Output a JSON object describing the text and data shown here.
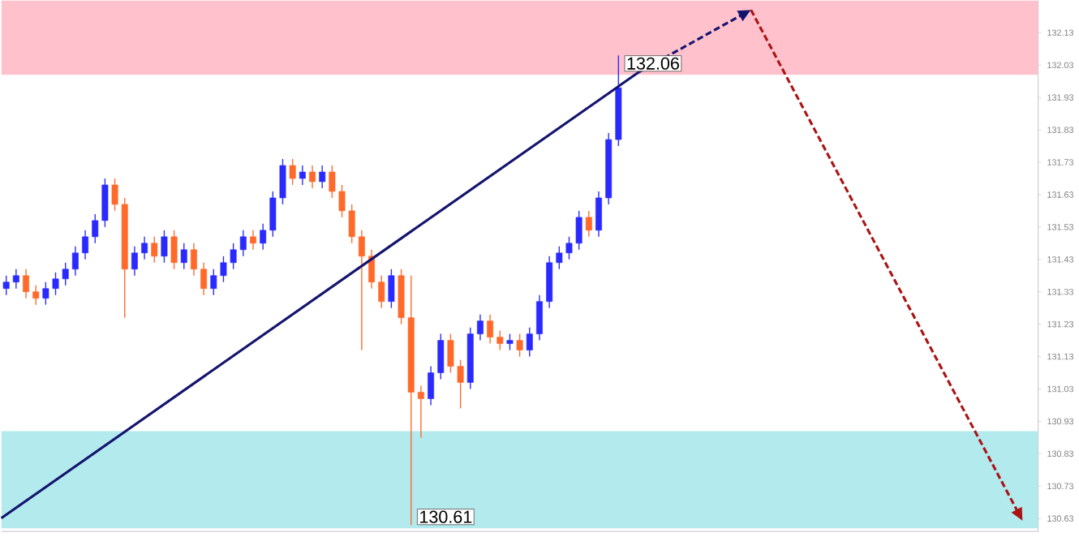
{
  "chart_data": {
    "type": "candlestick",
    "tick_labels": "y",
    "ylim": [
      130.59,
      132.23
    ],
    "yticks": [
      130.63,
      130.73,
      130.83,
      130.93,
      131.03,
      131.13,
      131.23,
      131.33,
      131.43,
      131.53,
      131.63,
      131.73,
      131.83,
      131.93,
      132.03,
      132.13
    ],
    "categories": [
      null,
      null,
      null,
      null,
      null,
      null,
      null,
      null,
      null,
      null,
      null,
      null,
      null,
      null,
      null,
      null,
      null,
      null,
      null,
      null,
      null,
      null,
      null,
      null,
      null,
      null,
      null,
      null,
      null,
      null,
      null,
      null,
      null,
      null,
      null,
      null,
      null,
      null,
      null,
      null,
      null,
      null,
      null,
      null,
      null,
      null,
      null,
      null,
      null,
      null,
      null,
      null,
      null,
      null,
      null,
      null,
      null,
      null,
      null,
      null,
      null,
      null,
      null,
      null,
      null,
      null,
      null,
      null,
      null,
      null,
      null,
      null,
      null,
      null,
      null,
      null,
      null,
      null,
      null,
      null,
      null,
      null,
      null,
      null,
      null,
      null,
      null,
      null,
      null,
      null,
      null,
      null,
      null,
      null,
      null,
      null,
      null,
      null,
      null,
      null,
      null,
      null,
      null,
      null,
      null
    ],
    "ohlc": [
      [
        131.34,
        131.38,
        131.32,
        131.36
      ],
      [
        131.36,
        131.4,
        131.34,
        131.38
      ],
      [
        131.38,
        131.4,
        131.31,
        131.33
      ],
      [
        131.33,
        131.35,
        131.29,
        131.31
      ],
      [
        131.31,
        131.36,
        131.29,
        131.34
      ],
      [
        131.34,
        131.39,
        131.32,
        131.37
      ],
      [
        131.37,
        131.42,
        131.35,
        131.4
      ],
      [
        131.4,
        131.47,
        131.38,
        131.45
      ],
      [
        131.45,
        131.52,
        131.43,
        131.5
      ],
      [
        131.5,
        131.57,
        131.48,
        131.55
      ],
      [
        131.55,
        131.68,
        131.53,
        131.66
      ],
      [
        131.66,
        131.68,
        131.58,
        131.6
      ],
      [
        131.6,
        131.62,
        131.25,
        131.4
      ],
      [
        131.4,
        131.47,
        131.38,
        131.45
      ],
      [
        131.45,
        131.5,
        131.43,
        131.48
      ],
      [
        131.48,
        131.5,
        131.42,
        131.44
      ],
      [
        131.44,
        131.52,
        131.42,
        131.5
      ],
      [
        131.5,
        131.52,
        131.4,
        131.42
      ],
      [
        131.42,
        131.48,
        131.4,
        131.46
      ],
      [
        131.46,
        131.48,
        131.38,
        131.4
      ],
      [
        131.4,
        131.42,
        131.32,
        131.34
      ],
      [
        131.34,
        131.4,
        131.32,
        131.38
      ],
      [
        131.38,
        131.44,
        131.36,
        131.42
      ],
      [
        131.42,
        131.48,
        131.4,
        131.46
      ],
      [
        131.46,
        131.52,
        131.44,
        131.5
      ],
      [
        131.5,
        131.52,
        131.46,
        131.48
      ],
      [
        131.48,
        131.54,
        131.46,
        131.52
      ],
      [
        131.52,
        131.64,
        131.5,
        131.62
      ],
      [
        131.62,
        131.74,
        131.6,
        131.72
      ],
      [
        131.72,
        131.74,
        131.66,
        131.68
      ],
      [
        131.68,
        131.72,
        131.66,
        131.7
      ],
      [
        131.7,
        131.72,
        131.65,
        131.67
      ],
      [
        131.67,
        131.72,
        131.65,
        131.7
      ],
      [
        131.7,
        131.72,
        131.62,
        131.64
      ],
      [
        131.64,
        131.66,
        131.56,
        131.58
      ],
      [
        131.58,
        131.6,
        131.48,
        131.5
      ],
      [
        131.5,
        131.52,
        131.15,
        131.44
      ],
      [
        131.44,
        131.46,
        131.34,
        131.36
      ],
      [
        131.36,
        131.38,
        131.28,
        131.3
      ],
      [
        131.3,
        131.4,
        131.28,
        131.38
      ],
      [
        131.38,
        131.4,
        131.23,
        131.25
      ],
      [
        131.25,
        131.38,
        130.61,
        131.02
      ],
      [
        131.02,
        131.04,
        130.88,
        131.0
      ],
      [
        131.0,
        131.1,
        130.98,
        131.08
      ],
      [
        131.08,
        131.2,
        131.06,
        131.18
      ],
      [
        131.18,
        131.2,
        131.08,
        131.1
      ],
      [
        131.1,
        131.12,
        130.97,
        131.05
      ],
      [
        131.05,
        131.22,
        131.03,
        131.2
      ],
      [
        131.2,
        131.26,
        131.18,
        131.24
      ],
      [
        131.24,
        131.26,
        131.17,
        131.19
      ],
      [
        131.19,
        131.21,
        131.15,
        131.17
      ],
      [
        131.17,
        131.2,
        131.15,
        131.18
      ],
      [
        131.18,
        131.2,
        131.13,
        131.15
      ],
      [
        131.15,
        131.22,
        131.13,
        131.2
      ],
      [
        131.2,
        131.32,
        131.18,
        131.3
      ],
      [
        131.3,
        131.44,
        131.28,
        131.42
      ],
      [
        131.42,
        131.47,
        131.4,
        131.45
      ],
      [
        131.45,
        131.5,
        131.43,
        131.48
      ],
      [
        131.48,
        131.58,
        131.46,
        131.56
      ],
      [
        131.56,
        131.58,
        131.5,
        131.52
      ],
      [
        131.52,
        131.64,
        131.5,
        131.62
      ],
      [
        131.62,
        131.82,
        131.6,
        131.8
      ],
      [
        131.8,
        132.06,
        131.78,
        131.96
      ],
      null,
      null,
      null,
      null,
      null,
      null,
      null,
      null,
      null,
      null,
      null,
      null,
      null,
      null,
      null,
      null,
      null,
      null,
      null,
      null,
      null,
      null,
      null,
      null,
      null,
      null,
      null,
      null,
      null,
      null,
      null,
      null,
      null,
      null,
      null,
      null,
      null,
      null,
      null,
      null,
      null,
      null
    ],
    "colors": [
      "#2a2aff",
      "#2a2aff",
      "#ff6a2a",
      "#ff6a2a",
      "#2a2aff",
      "#2a2aff",
      "#2a2aff",
      "#2a2aff",
      "#2a2aff",
      "#2a2aff",
      "#2a2aff",
      "#ff6a2a",
      "#ff6a2a",
      "#2a2aff",
      "#2a2aff",
      "#ff6a2a",
      "#2a2aff",
      "#ff6a2a",
      "#2a2aff",
      "#ff6a2a",
      "#ff6a2a",
      "#2a2aff",
      "#2a2aff",
      "#2a2aff",
      "#2a2aff",
      "#ff6a2a",
      "#2a2aff",
      "#2a2aff",
      "#2a2aff",
      "#ff6a2a",
      "#2a2aff",
      "#ff6a2a",
      "#2a2aff",
      "#ff6a2a",
      "#ff6a2a",
      "#ff6a2a",
      "#ff6a2a",
      "#ff6a2a",
      "#ff6a2a",
      "#2a2aff",
      "#ff6a2a",
      "#ff6a2a",
      "#ff6a2a",
      "#2a2aff",
      "#2a2aff",
      "#ff6a2a",
      "#ff6a2a",
      "#2a2aff",
      "#2a2aff",
      "#ff6a2a",
      "#ff6a2a",
      "#2a2aff",
      "#ff6a2a",
      "#2a2aff",
      "#2a2aff",
      "#2a2aff",
      "#2a2aff",
      "#2a2aff",
      "#2a2aff",
      "#ff6a2a",
      "#2a2aff",
      "#2a2aff",
      "#2a2aff",
      null,
      null,
      null,
      null,
      null,
      null,
      null,
      null,
      null,
      null,
      null,
      null,
      null,
      null,
      null,
      null,
      null,
      null,
      null,
      null,
      null,
      null,
      null,
      null,
      null,
      null,
      null,
      null,
      null,
      null,
      null,
      null,
      null,
      null,
      null,
      null,
      null,
      null,
      null,
      null,
      null,
      null
    ],
    "bands": [
      {
        "axis": "y",
        "from": 132.0,
        "to": 132.23,
        "color": "#ffc1cc"
      },
      {
        "axis": "y",
        "from": 130.6,
        "to": 130.9,
        "color": "#b2eaed"
      }
    ],
    "annotations": [
      "132.06",
      "130.61"
    ]
  }
}
